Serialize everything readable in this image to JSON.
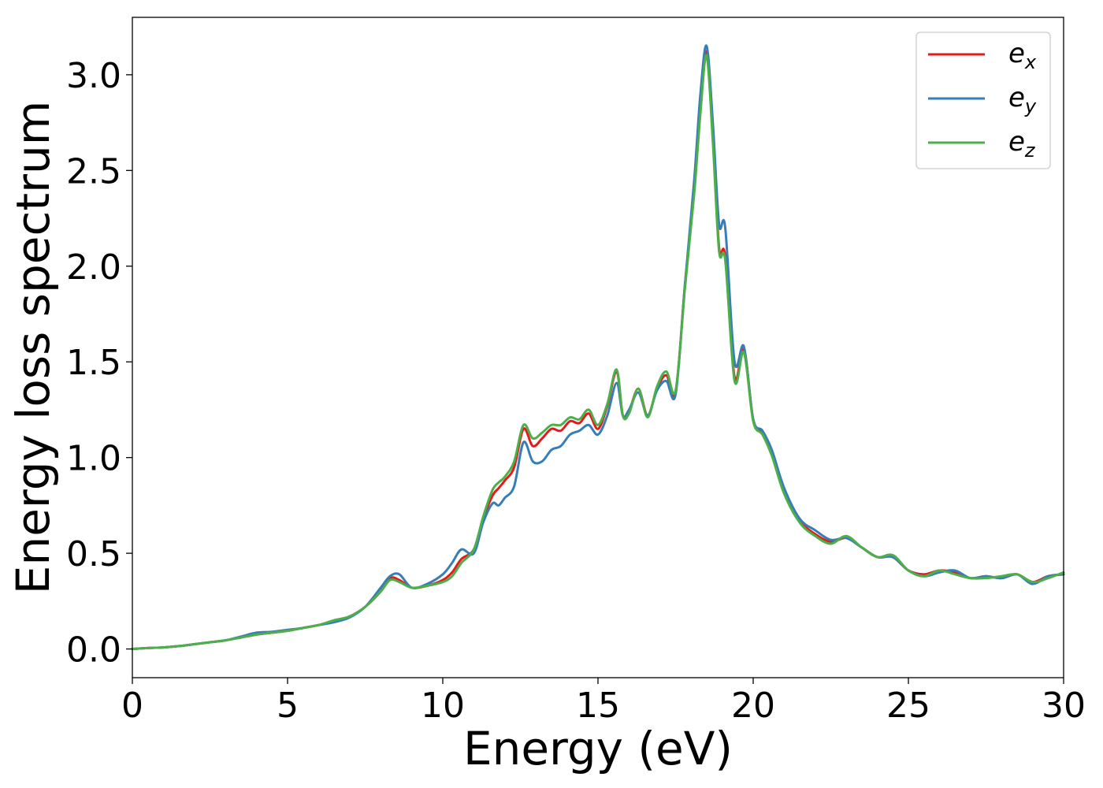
{
  "chart_data": {
    "type": "line",
    "title": "",
    "xlabel": "Energy (eV)",
    "ylabel": "Energy loss spectrum",
    "xlim": [
      0,
      30
    ],
    "ylim": [
      -0.15,
      3.3
    ],
    "xticks": [
      0,
      5,
      10,
      15,
      20,
      25,
      30
    ],
    "yticks": [
      0.0,
      0.5,
      1.0,
      1.5,
      2.0,
      2.5,
      3.0
    ],
    "xtick_labels": [
      "0",
      "5",
      "10",
      "15",
      "20",
      "25",
      "30"
    ],
    "ytick_labels": [
      "0.0",
      "0.5",
      "1.0",
      "1.5",
      "2.0",
      "2.5",
      "3.0"
    ],
    "grid": false,
    "legend_position": "top-right",
    "x": [
      0,
      0.5,
      1,
      1.5,
      2,
      2.5,
      3,
      3.5,
      4,
      4.5,
      5,
      5.5,
      6,
      6.5,
      7,
      7.5,
      8,
      8.3,
      8.6,
      9,
      9.5,
      10,
      10.3,
      10.6,
      11,
      11.3,
      11.6,
      11.8,
      12,
      12.3,
      12.6,
      12.9,
      13.2,
      13.5,
      13.8,
      14.1,
      14.4,
      14.7,
      15,
      15.3,
      15.6,
      15.8,
      16,
      16.3,
      16.6,
      16.9,
      17.2,
      17.5,
      17.8,
      18.1,
      18.3,
      18.5,
      18.7,
      18.9,
      19.1,
      19.4,
      19.7,
      20,
      20.3,
      20.6,
      21,
      21.5,
      22,
      22.5,
      23,
      23.5,
      24,
      24.5,
      25,
      25.5,
      26,
      26.5,
      27,
      27.5,
      28,
      28.5,
      29,
      29.5,
      30
    ],
    "series": [
      {
        "name": "e_x",
        "label_main": "e",
        "label_sub": "x",
        "color": "#e41a1c",
        "values": [
          0,
          0.005,
          0.008,
          0.015,
          0.025,
          0.035,
          0.045,
          0.06,
          0.075,
          0.085,
          0.095,
          0.11,
          0.125,
          0.145,
          0.17,
          0.22,
          0.3,
          0.37,
          0.36,
          0.32,
          0.33,
          0.36,
          0.4,
          0.47,
          0.52,
          0.68,
          0.8,
          0.84,
          0.88,
          0.95,
          1.15,
          1.06,
          1.1,
          1.15,
          1.14,
          1.19,
          1.18,
          1.23,
          1.15,
          1.27,
          1.45,
          1.22,
          1.24,
          1.36,
          1.22,
          1.36,
          1.43,
          1.34,
          1.9,
          2.4,
          2.85,
          3.12,
          2.7,
          2.1,
          2.05,
          1.42,
          1.57,
          1.2,
          1.13,
          1.02,
          0.82,
          0.67,
          0.6,
          0.56,
          0.58,
          0.53,
          0.48,
          0.48,
          0.41,
          0.39,
          0.41,
          0.4,
          0.37,
          0.38,
          0.37,
          0.39,
          0.35,
          0.38,
          0.39
        ]
      },
      {
        "name": "e_y",
        "label_main": "e",
        "label_sub": "y",
        "color": "#377eb8",
        "values": [
          0,
          0.005,
          0.008,
          0.015,
          0.025,
          0.035,
          0.045,
          0.065,
          0.085,
          0.09,
          0.1,
          0.11,
          0.125,
          0.14,
          0.165,
          0.22,
          0.32,
          0.38,
          0.39,
          0.32,
          0.34,
          0.39,
          0.45,
          0.52,
          0.5,
          0.66,
          0.76,
          0.75,
          0.79,
          0.85,
          1.08,
          0.98,
          0.98,
          1.04,
          1.06,
          1.12,
          1.14,
          1.17,
          1.12,
          1.22,
          1.39,
          1.22,
          1.25,
          1.34,
          1.22,
          1.35,
          1.4,
          1.33,
          1.9,
          2.45,
          2.9,
          3.15,
          2.75,
          2.22,
          2.2,
          1.5,
          1.58,
          1.2,
          1.14,
          1.04,
          0.84,
          0.68,
          0.62,
          0.57,
          0.58,
          0.53,
          0.48,
          0.48,
          0.41,
          0.38,
          0.4,
          0.41,
          0.37,
          0.38,
          0.37,
          0.39,
          0.34,
          0.38,
          0.39
        ]
      },
      {
        "name": "e_z",
        "label_main": "e",
        "label_sub": "z",
        "color": "#4daf4a",
        "values": [
          0,
          0.005,
          0.008,
          0.015,
          0.025,
          0.035,
          0.045,
          0.06,
          0.075,
          0.085,
          0.095,
          0.11,
          0.125,
          0.15,
          0.17,
          0.22,
          0.3,
          0.36,
          0.35,
          0.32,
          0.33,
          0.35,
          0.38,
          0.45,
          0.52,
          0.69,
          0.83,
          0.87,
          0.9,
          0.98,
          1.17,
          1.1,
          1.13,
          1.17,
          1.17,
          1.21,
          1.2,
          1.25,
          1.17,
          1.28,
          1.46,
          1.22,
          1.23,
          1.36,
          1.21,
          1.37,
          1.45,
          1.35,
          1.88,
          2.38,
          2.8,
          3.1,
          2.65,
          2.08,
          2.03,
          1.4,
          1.55,
          1.19,
          1.12,
          1.01,
          0.81,
          0.66,
          0.59,
          0.55,
          0.59,
          0.53,
          0.48,
          0.49,
          0.41,
          0.38,
          0.41,
          0.39,
          0.37,
          0.37,
          0.38,
          0.39,
          0.35,
          0.37,
          0.4
        ]
      }
    ]
  }
}
